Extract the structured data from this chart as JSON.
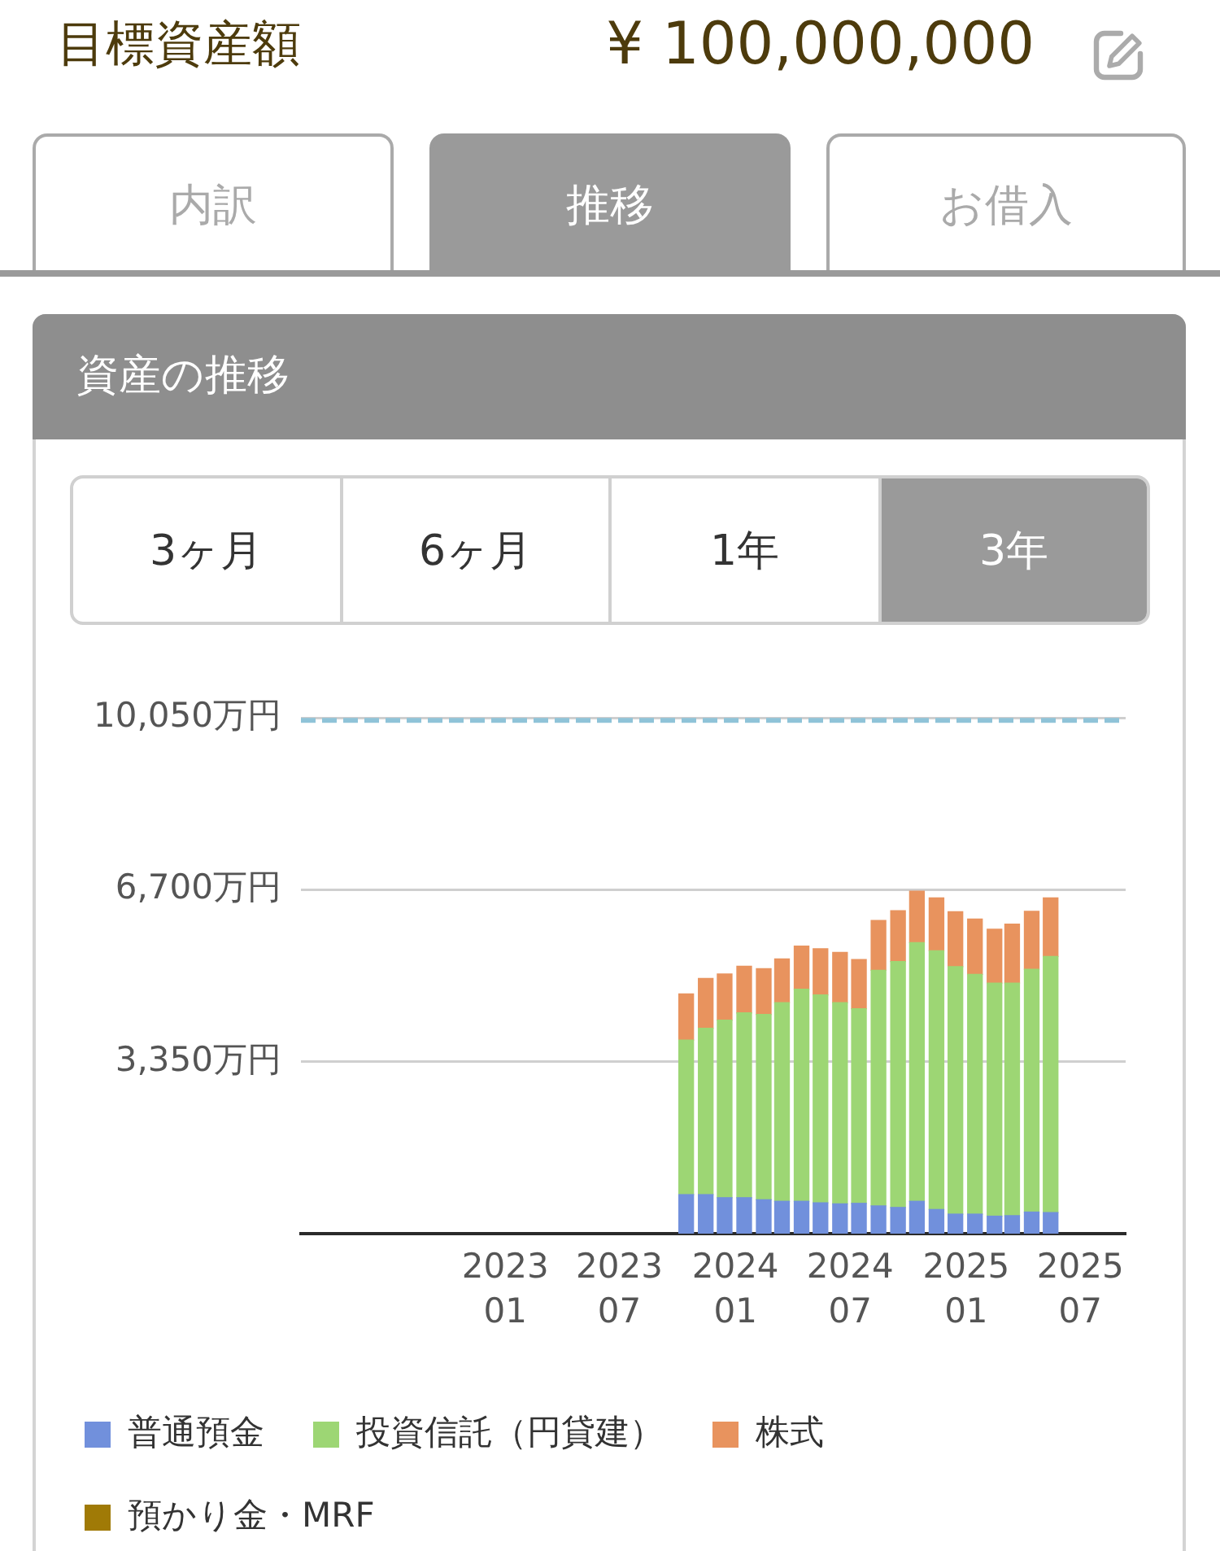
{
  "chart_data": {
    "type": "bar",
    "title": "資産の推移",
    "x": [
      "2023-10-15",
      "2023-11-15",
      "2023-12-15",
      "2024-01-15",
      "2024-02-15",
      "2024-03-15",
      "2024-04-15",
      "2024-05-15",
      "2024-06-15",
      "2024-07-15",
      "2024-08-15",
      "2024-09-15",
      "2024-10-15",
      "2024-11-15",
      "2024-12-15",
      "2025-01-15",
      "2025-02-15",
      "2025-03-15",
      "2025-04-15",
      "2025-05-15"
    ],
    "series": [
      {
        "name": "普通預金",
        "color": "#7190dc",
        "values": [
          760,
          760,
          700,
          700,
          660,
          630,
          630,
          600,
          580,
          590,
          540,
          510,
          630,
          470,
          380,
          380,
          340,
          350,
          420,
          410
        ]
      },
      {
        "name": "投資信託（円貸建）",
        "color": "#9dd674",
        "values": [
          3010,
          3240,
          3460,
          3600,
          3610,
          3870,
          4130,
          4050,
          3920,
          3790,
          4590,
          4790,
          5040,
          5040,
          4820,
          4670,
          4540,
          4530,
          4730,
          4990
        ]
      },
      {
        "name": "株式",
        "color": "#e8935e",
        "values": [
          900,
          970,
          900,
          910,
          890,
          850,
          840,
          900,
          980,
          960,
          970,
          990,
          1000,
          1030,
          1070,
          1080,
          1050,
          1150,
          1130,
          1140
        ]
      },
      {
        "name": "預かり金・MRF",
        "color": "#a07a06",
        "values": [
          null,
          null,
          null,
          null,
          null,
          null,
          null,
          null,
          null,
          null,
          null,
          null,
          null,
          null,
          null,
          null,
          null,
          null,
          null,
          null
        ]
      }
    ],
    "stacked": true,
    "xlim": [
      "2022-02-11",
      "2025-09-11"
    ],
    "xticks": [
      {
        "value": "2023-01",
        "label": "2023\n01"
      },
      {
        "value": "2023-07",
        "label": "2023\n07"
      },
      {
        "value": "2024-01",
        "label": "2024\n01"
      },
      {
        "value": "2024-07",
        "label": "2024\n07"
      },
      {
        "value": "2025-01",
        "label": "2025\n01"
      },
      {
        "value": "2025-07",
        "label": "2025\n07"
      }
    ],
    "ylim": [
      0,
      10050
    ],
    "yticks": [
      {
        "value": 3350,
        "label": "3,350万円"
      },
      {
        "value": 6700,
        "label": "6,700万円"
      },
      {
        "value": 10050,
        "label": "10,050万円"
      }
    ],
    "ref_lines": [
      {
        "axis": "y",
        "value": 10000,
        "color": "#8fc3d8",
        "line_style": "dashed"
      }
    ],
    "grid": "y",
    "legend": "bottom",
    "annotations": [
      "目標資産額",
      "¥ 100,000,000",
      "内訳",
      "推移",
      "お借入",
      "3ヶ月",
      "6ヶ月",
      "1年",
      "3年"
    ]
  }
}
